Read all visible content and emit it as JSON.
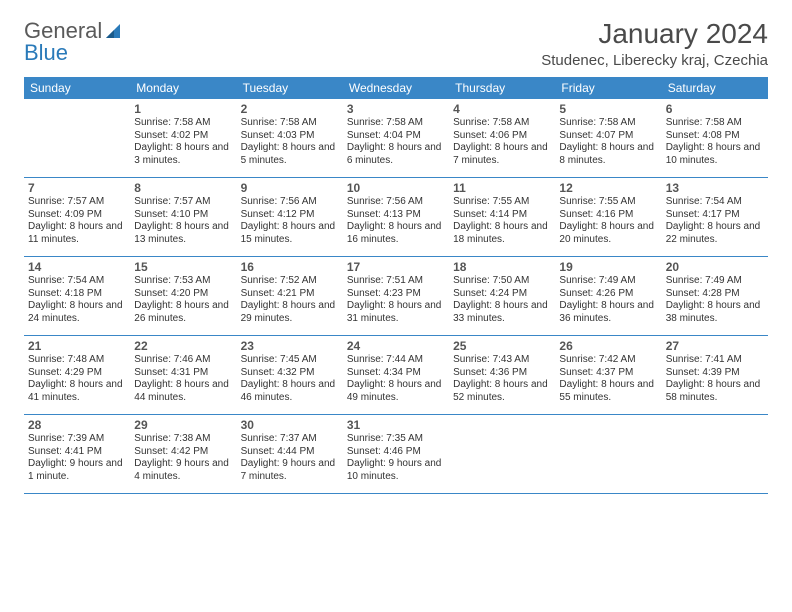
{
  "logo": {
    "text1": "General",
    "text2": "Blue"
  },
  "title": "January 2024",
  "location": "Studenec, Liberecky kraj, Czechia",
  "colors": {
    "header_bg": "#3a87c7",
    "header_text": "#ffffff",
    "border": "#3a87c7",
    "daynum": "#555555",
    "body_text": "#333333",
    "logo_gray": "#5a5a5a",
    "logo_blue": "#2a7ab9",
    "background": "#ffffff"
  },
  "day_names": [
    "Sunday",
    "Monday",
    "Tuesday",
    "Wednesday",
    "Thursday",
    "Friday",
    "Saturday"
  ],
  "weeks": [
    [
      {
        "n": "",
        "sr": "",
        "ss": "",
        "dl": ""
      },
      {
        "n": "1",
        "sr": "Sunrise: 7:58 AM",
        "ss": "Sunset: 4:02 PM",
        "dl": "Daylight: 8 hours and 3 minutes."
      },
      {
        "n": "2",
        "sr": "Sunrise: 7:58 AM",
        "ss": "Sunset: 4:03 PM",
        "dl": "Daylight: 8 hours and 5 minutes."
      },
      {
        "n": "3",
        "sr": "Sunrise: 7:58 AM",
        "ss": "Sunset: 4:04 PM",
        "dl": "Daylight: 8 hours and 6 minutes."
      },
      {
        "n": "4",
        "sr": "Sunrise: 7:58 AM",
        "ss": "Sunset: 4:06 PM",
        "dl": "Daylight: 8 hours and 7 minutes."
      },
      {
        "n": "5",
        "sr": "Sunrise: 7:58 AM",
        "ss": "Sunset: 4:07 PM",
        "dl": "Daylight: 8 hours and 8 minutes."
      },
      {
        "n": "6",
        "sr": "Sunrise: 7:58 AM",
        "ss": "Sunset: 4:08 PM",
        "dl": "Daylight: 8 hours and 10 minutes."
      }
    ],
    [
      {
        "n": "7",
        "sr": "Sunrise: 7:57 AM",
        "ss": "Sunset: 4:09 PM",
        "dl": "Daylight: 8 hours and 11 minutes."
      },
      {
        "n": "8",
        "sr": "Sunrise: 7:57 AM",
        "ss": "Sunset: 4:10 PM",
        "dl": "Daylight: 8 hours and 13 minutes."
      },
      {
        "n": "9",
        "sr": "Sunrise: 7:56 AM",
        "ss": "Sunset: 4:12 PM",
        "dl": "Daylight: 8 hours and 15 minutes."
      },
      {
        "n": "10",
        "sr": "Sunrise: 7:56 AM",
        "ss": "Sunset: 4:13 PM",
        "dl": "Daylight: 8 hours and 16 minutes."
      },
      {
        "n": "11",
        "sr": "Sunrise: 7:55 AM",
        "ss": "Sunset: 4:14 PM",
        "dl": "Daylight: 8 hours and 18 minutes."
      },
      {
        "n": "12",
        "sr": "Sunrise: 7:55 AM",
        "ss": "Sunset: 4:16 PM",
        "dl": "Daylight: 8 hours and 20 minutes."
      },
      {
        "n": "13",
        "sr": "Sunrise: 7:54 AM",
        "ss": "Sunset: 4:17 PM",
        "dl": "Daylight: 8 hours and 22 minutes."
      }
    ],
    [
      {
        "n": "14",
        "sr": "Sunrise: 7:54 AM",
        "ss": "Sunset: 4:18 PM",
        "dl": "Daylight: 8 hours and 24 minutes."
      },
      {
        "n": "15",
        "sr": "Sunrise: 7:53 AM",
        "ss": "Sunset: 4:20 PM",
        "dl": "Daylight: 8 hours and 26 minutes."
      },
      {
        "n": "16",
        "sr": "Sunrise: 7:52 AM",
        "ss": "Sunset: 4:21 PM",
        "dl": "Daylight: 8 hours and 29 minutes."
      },
      {
        "n": "17",
        "sr": "Sunrise: 7:51 AM",
        "ss": "Sunset: 4:23 PM",
        "dl": "Daylight: 8 hours and 31 minutes."
      },
      {
        "n": "18",
        "sr": "Sunrise: 7:50 AM",
        "ss": "Sunset: 4:24 PM",
        "dl": "Daylight: 8 hours and 33 minutes."
      },
      {
        "n": "19",
        "sr": "Sunrise: 7:49 AM",
        "ss": "Sunset: 4:26 PM",
        "dl": "Daylight: 8 hours and 36 minutes."
      },
      {
        "n": "20",
        "sr": "Sunrise: 7:49 AM",
        "ss": "Sunset: 4:28 PM",
        "dl": "Daylight: 8 hours and 38 minutes."
      }
    ],
    [
      {
        "n": "21",
        "sr": "Sunrise: 7:48 AM",
        "ss": "Sunset: 4:29 PM",
        "dl": "Daylight: 8 hours and 41 minutes."
      },
      {
        "n": "22",
        "sr": "Sunrise: 7:46 AM",
        "ss": "Sunset: 4:31 PM",
        "dl": "Daylight: 8 hours and 44 minutes."
      },
      {
        "n": "23",
        "sr": "Sunrise: 7:45 AM",
        "ss": "Sunset: 4:32 PM",
        "dl": "Daylight: 8 hours and 46 minutes."
      },
      {
        "n": "24",
        "sr": "Sunrise: 7:44 AM",
        "ss": "Sunset: 4:34 PM",
        "dl": "Daylight: 8 hours and 49 minutes."
      },
      {
        "n": "25",
        "sr": "Sunrise: 7:43 AM",
        "ss": "Sunset: 4:36 PM",
        "dl": "Daylight: 8 hours and 52 minutes."
      },
      {
        "n": "26",
        "sr": "Sunrise: 7:42 AM",
        "ss": "Sunset: 4:37 PM",
        "dl": "Daylight: 8 hours and 55 minutes."
      },
      {
        "n": "27",
        "sr": "Sunrise: 7:41 AM",
        "ss": "Sunset: 4:39 PM",
        "dl": "Daylight: 8 hours and 58 minutes."
      }
    ],
    [
      {
        "n": "28",
        "sr": "Sunrise: 7:39 AM",
        "ss": "Sunset: 4:41 PM",
        "dl": "Daylight: 9 hours and 1 minute."
      },
      {
        "n": "29",
        "sr": "Sunrise: 7:38 AM",
        "ss": "Sunset: 4:42 PM",
        "dl": "Daylight: 9 hours and 4 minutes."
      },
      {
        "n": "30",
        "sr": "Sunrise: 7:37 AM",
        "ss": "Sunset: 4:44 PM",
        "dl": "Daylight: 9 hours and 7 minutes."
      },
      {
        "n": "31",
        "sr": "Sunrise: 7:35 AM",
        "ss": "Sunset: 4:46 PM",
        "dl": "Daylight: 9 hours and 10 minutes."
      },
      {
        "n": "",
        "sr": "",
        "ss": "",
        "dl": ""
      },
      {
        "n": "",
        "sr": "",
        "ss": "",
        "dl": ""
      },
      {
        "n": "",
        "sr": "",
        "ss": "",
        "dl": ""
      }
    ]
  ]
}
